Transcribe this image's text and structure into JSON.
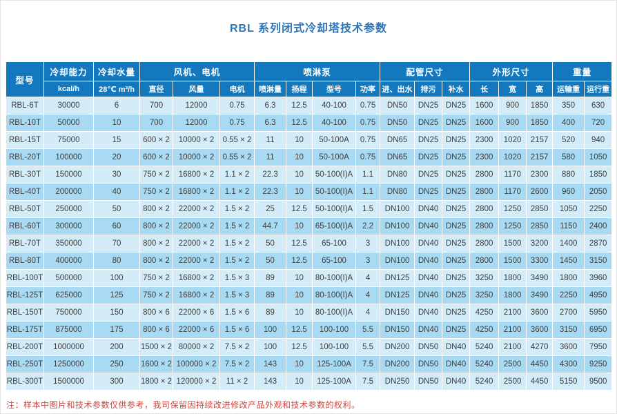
{
  "page": {
    "title": "RBL 系列闭式冷却塔技术参数",
    "note": "注：样本中图片和技术参数仅供参考，我司保留因持续改进修改产品外观和技术参数的权利。"
  },
  "colors": {
    "header_bg": "#1378bd",
    "row_light": "#d3ecf8",
    "row_dark": "#a8dbf3",
    "title_text": "#2e74b5",
    "note_text": "#d0443c",
    "cell_text": "#3d3d3d"
  },
  "table": {
    "model_header": "型号",
    "header_groups": [
      {
        "label": "冷却能力",
        "colspan": 1
      },
      {
        "label": "冷却水量",
        "colspan": 1
      },
      {
        "label": "风机、电机",
        "colspan": 3
      },
      {
        "label": "喷淋泵",
        "colspan": 4
      },
      {
        "label": "配管尺寸",
        "colspan": 3
      },
      {
        "label": "外形尺寸",
        "colspan": 3
      },
      {
        "label": "重量",
        "colspan": 2
      }
    ],
    "sub_headers": [
      "kcal/h",
      "28℃ m³/h",
      "直径",
      "风量",
      "电机",
      "喷淋量",
      "扬程",
      "型号",
      "功率",
      "进、出水",
      "排污",
      "补水",
      "长",
      "宽",
      "高",
      "运输重",
      "运行重"
    ],
    "rows": [
      [
        "RBL-6T",
        "30000",
        "6",
        "700",
        "12000",
        "0.75",
        "6.3",
        "12.5",
        "40-100",
        "0.75",
        "DN50",
        "DN25",
        "DN25",
        "1600",
        "900",
        "1850",
        "350",
        "630"
      ],
      [
        "RBL-10T",
        "50000",
        "10",
        "700",
        "12000",
        "0.75",
        "6.3",
        "12.5",
        "40-100",
        "0.75",
        "DN50",
        "DN25",
        "DN25",
        "1600",
        "900",
        "1850",
        "400",
        "720"
      ],
      [
        "RBL-15T",
        "75000",
        "15",
        "600 × 2",
        "10000 × 2",
        "0.55 × 2",
        "11",
        "10",
        "50-100A",
        "0.75",
        "DN65",
        "DN25",
        "DN25",
        "2300",
        "1020",
        "2157",
        "520",
        "940"
      ],
      [
        "RBL-20T",
        "100000",
        "20",
        "600 × 2",
        "10000 × 2",
        "0.55 × 2",
        "11",
        "10",
        "50-100A",
        "0.75",
        "DN65",
        "DN25",
        "DN25",
        "2300",
        "1020",
        "2157",
        "580",
        "1050"
      ],
      [
        "RBL-30T",
        "150000",
        "30",
        "750 × 2",
        "16800 × 2",
        "1.1 × 2",
        "22.3",
        "10",
        "50-100(I)A",
        "1.1",
        "DN80",
        "DN25",
        "DN25",
        "2800",
        "1170",
        "2300",
        "880",
        "1850"
      ],
      [
        "RBL-40T",
        "200000",
        "40",
        "750 × 2",
        "16800 × 2",
        "1.1 × 2",
        "22.3",
        "10",
        "50-100(I)A",
        "1.1",
        "DN80",
        "DN25",
        "DN25",
        "2800",
        "1170",
        "2600",
        "960",
        "2050"
      ],
      [
        "RBL-50T",
        "250000",
        "50",
        "800 × 2",
        "22000 × 2",
        "1.5 × 2",
        "25",
        "12.5",
        "50-100(I)A",
        "1.5",
        "DN100",
        "DN40",
        "DN25",
        "2800",
        "1250",
        "2850",
        "1050",
        "2250"
      ],
      [
        "RBL-60T",
        "300000",
        "60",
        "800 × 2",
        "22000 × 2",
        "1.5 × 2",
        "44.7",
        "10",
        "65-100(I)A",
        "2.2",
        "DN100",
        "DN40",
        "DN25",
        "2800",
        "1250",
        "2850",
        "1150",
        "2400"
      ],
      [
        "RBL-70T",
        "350000",
        "70",
        "800 × 2",
        "22000 × 2",
        "1.5 × 2",
        "50",
        "12.5",
        "65-100",
        "3",
        "DN100",
        "DN40",
        "DN25",
        "2800",
        "1500",
        "3200",
        "1400",
        "2870"
      ],
      [
        "RBL-80T",
        "400000",
        "80",
        "800 × 2",
        "22000 × 2",
        "1.5 × 2",
        "50",
        "12.5",
        "65-100",
        "3",
        "DN100",
        "DN40",
        "DN25",
        "2800",
        "1500",
        "3300",
        "1450",
        "3150"
      ],
      [
        "RBL-100T",
        "500000",
        "100",
        "750 × 2",
        "16800 × 2",
        "1.5 × 3",
        "89",
        "10",
        "80-100(I)A",
        "4",
        "DN125",
        "DN40",
        "DN25",
        "3250",
        "1800",
        "3490",
        "1800",
        "3960"
      ],
      [
        "RBL-125T",
        "625000",
        "125",
        "750 × 2",
        "16800 × 2",
        "1.5 × 3",
        "89",
        "10",
        "80-100(I)A",
        "4",
        "DN125",
        "DN40",
        "DN25",
        "3250",
        "1800",
        "3490",
        "2250",
        "4950"
      ],
      [
        "RBL-150T",
        "750000",
        "150",
        "800 × 6",
        "22000 × 6",
        "1.5 × 6",
        "89",
        "10",
        "80-100(I)A",
        "4",
        "DN150",
        "DN40",
        "DN25",
        "4250",
        "2100",
        "3600",
        "2700",
        "5950"
      ],
      [
        "RBL-175T",
        "875000",
        "175",
        "800 × 6",
        "22000 × 6",
        "1.5 × 6",
        "100",
        "12.5",
        "100-100",
        "5.5",
        "DN150",
        "DN40",
        "DN25",
        "4250",
        "2100",
        "3600",
        "3150",
        "6950"
      ],
      [
        "RBL-200T",
        "1000000",
        "200",
        "1500 × 2",
        "80000 × 2",
        "7.5 × 2",
        "100",
        "12.5",
        "100-100",
        "5.5",
        "DN200",
        "DN50",
        "DN40",
        "5240",
        "2100",
        "4270",
        "3600",
        "7950"
      ],
      [
        "RBL-250T",
        "1250000",
        "250",
        "1600 × 2",
        "100000 × 2",
        "7.5 × 2",
        "143",
        "10",
        "125-100A",
        "7.5",
        "DN200",
        "DN50",
        "DN40",
        "5240",
        "2500",
        "4450",
        "4300",
        "9250"
      ],
      [
        "RBL-300T",
        "1500000",
        "300",
        "1800 × 2",
        "120000 × 2",
        "11 × 2",
        "143",
        "10",
        "125-100A",
        "7.5",
        "DN250",
        "DN50",
        "DN40",
        "5240",
        "2500",
        "4450",
        "5150",
        "9500"
      ]
    ]
  }
}
